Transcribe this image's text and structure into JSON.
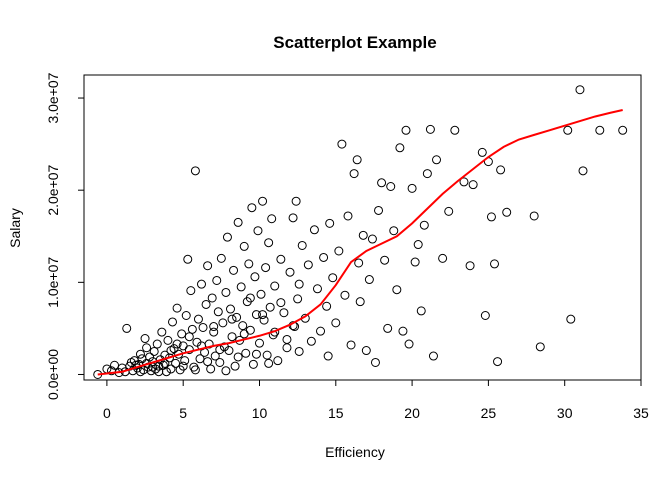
{
  "chart_data": {
    "type": "scatter",
    "title": "Scatterplot Example",
    "xlabel": "Efficiency",
    "ylabel": "Salary",
    "xlim": [
      -1.5,
      35
    ],
    "ylim": [
      -600000,
      32500000
    ],
    "x_ticks": [
      0,
      5,
      10,
      15,
      20,
      25,
      30,
      35
    ],
    "x_tick_labels": [
      "0",
      "5",
      "10",
      "15",
      "20",
      "25",
      "30",
      "35"
    ],
    "y_ticks": [
      0,
      10000000,
      20000000,
      30000000
    ],
    "y_tick_labels": [
      "0.0e+00",
      "1.0e+07",
      "2.0e+07",
      "3.0e+07"
    ],
    "grid": false,
    "legend": "none",
    "point_color": "#000000",
    "smoother_color": "#ff0000",
    "series": [
      {
        "kind": "points",
        "marker": "open-circle",
        "points": [
          [
            -0.6,
            0
          ],
          [
            0,
            600000
          ],
          [
            0.3,
            400000
          ],
          [
            0.5,
            1000000
          ],
          [
            0.8,
            200000
          ],
          [
            1,
            700000
          ],
          [
            1.2,
            300000
          ],
          [
            1.3,
            5000000
          ],
          [
            1.5,
            900000
          ],
          [
            1.6,
            1300000
          ],
          [
            1.7,
            400000
          ],
          [
            1.8,
            1500000
          ],
          [
            2,
            700000
          ],
          [
            2.1,
            1100000
          ],
          [
            2.2,
            300000
          ],
          [
            2.3,
            1700000
          ],
          [
            2.4,
            500000
          ],
          [
            2.5,
            3900000
          ],
          [
            2.6,
            1200000
          ],
          [
            2.7,
            800000
          ],
          [
            2.8,
            1900000
          ],
          [
            2.9,
            400000
          ],
          [
            3,
            1400000
          ],
          [
            3.1,
            2500000
          ],
          [
            3.2,
            600000
          ],
          [
            3.3,
            3300000
          ],
          [
            3.4,
            900000
          ],
          [
            3.5,
            1600000
          ],
          [
            3.6,
            4600000
          ],
          [
            3.7,
            1000000
          ],
          [
            3.8,
            2100000
          ],
          [
            3.9,
            300000
          ],
          [
            4,
            3700000
          ],
          [
            4.1,
            1800000
          ],
          [
            4.2,
            600000
          ],
          [
            4.3,
            5700000
          ],
          [
            4.4,
            2800000
          ],
          [
            4.5,
            1200000
          ],
          [
            4.6,
            7200000
          ],
          [
            4.7,
            2200000
          ],
          [
            4.8,
            500000
          ],
          [
            4.9,
            4400000
          ],
          [
            5,
            3100000
          ],
          [
            5.1,
            1500000
          ],
          [
            5.2,
            6400000
          ],
          [
            5.3,
            12500000
          ],
          [
            5.4,
            2700000
          ],
          [
            5.5,
            9100000
          ],
          [
            5.6,
            4900000
          ],
          [
            5.7,
            800000
          ],
          [
            5.8,
            22100000
          ],
          [
            5.9,
            3500000
          ],
          [
            6,
            6000000
          ],
          [
            6.1,
            1700000
          ],
          [
            6.2,
            9800000
          ],
          [
            6.3,
            5100000
          ],
          [
            6.4,
            2400000
          ],
          [
            6.5,
            7600000
          ],
          [
            6.6,
            11800000
          ],
          [
            6.7,
            3300000
          ],
          [
            6.8,
            600000
          ],
          [
            6.9,
            8300000
          ],
          [
            7,
            4600000
          ],
          [
            7.1,
            2000000
          ],
          [
            7.2,
            10200000
          ],
          [
            7.3,
            6800000
          ],
          [
            7.4,
            1300000
          ],
          [
            7.5,
            12600000
          ],
          [
            7.6,
            5600000
          ],
          [
            7.7,
            3000000
          ],
          [
            7.8,
            8900000
          ],
          [
            7.9,
            14900000
          ],
          [
            8,
            2600000
          ],
          [
            8.1,
            7100000
          ],
          [
            8.2,
            4100000
          ],
          [
            8.3,
            11300000
          ],
          [
            8.4,
            900000
          ],
          [
            8.5,
            6200000
          ],
          [
            8.6,
            16500000
          ],
          [
            8.7,
            3700000
          ],
          [
            8.8,
            9500000
          ],
          [
            8.9,
            5300000
          ],
          [
            9,
            13900000
          ],
          [
            9.1,
            2300000
          ],
          [
            9.2,
            7900000
          ],
          [
            9.3,
            12000000
          ],
          [
            9.4,
            4800000
          ],
          [
            9.5,
            18100000
          ],
          [
            9.6,
            1100000
          ],
          [
            9.7,
            10600000
          ],
          [
            9.8,
            6500000
          ],
          [
            9.9,
            15600000
          ],
          [
            10,
            3400000
          ],
          [
            10.1,
            8700000
          ],
          [
            10.2,
            18800000
          ],
          [
            10.3,
            5900000
          ],
          [
            10.4,
            11600000
          ],
          [
            10.5,
            2100000
          ],
          [
            10.6,
            14300000
          ],
          [
            10.7,
            7300000
          ],
          [
            10.8,
            16900000
          ],
          [
            10.9,
            4300000
          ],
          [
            11,
            9600000
          ],
          [
            11.2,
            1500000
          ],
          [
            11.4,
            12500000
          ],
          [
            11.6,
            6700000
          ],
          [
            11.8,
            3800000
          ],
          [
            12,
            11100000
          ],
          [
            12.2,
            17000000
          ],
          [
            12.3,
            5200000
          ],
          [
            12.4,
            18800000
          ],
          [
            12.5,
            8200000
          ],
          [
            12.6,
            2500000
          ],
          [
            12.8,
            14000000
          ],
          [
            13,
            6100000
          ],
          [
            13.2,
            11900000
          ],
          [
            13.4,
            3600000
          ],
          [
            13.6,
            15700000
          ],
          [
            13.8,
            9300000
          ],
          [
            14,
            4700000
          ],
          [
            14.2,
            12700000
          ],
          [
            14.4,
            7400000
          ],
          [
            14.5,
            2000000
          ],
          [
            14.6,
            16400000
          ],
          [
            14.8,
            10500000
          ],
          [
            15,
            5600000
          ],
          [
            15.2,
            13400000
          ],
          [
            15.4,
            25000000
          ],
          [
            15.6,
            8600000
          ],
          [
            15.8,
            17200000
          ],
          [
            16,
            3200000
          ],
          [
            16.2,
            21800000
          ],
          [
            16.4,
            23300000
          ],
          [
            16.5,
            12100000
          ],
          [
            16.6,
            7900000
          ],
          [
            16.8,
            15100000
          ],
          [
            17,
            2600000
          ],
          [
            17.2,
            10300000
          ],
          [
            17.4,
            14700000
          ],
          [
            17.6,
            1300000
          ],
          [
            17.8,
            17800000
          ],
          [
            18,
            20800000
          ],
          [
            18.2,
            12400000
          ],
          [
            18.4,
            5000000
          ],
          [
            18.6,
            20400000
          ],
          [
            18.8,
            15600000
          ],
          [
            19,
            9200000
          ],
          [
            19.2,
            24600000
          ],
          [
            19.4,
            4700000
          ],
          [
            19.6,
            26500000
          ],
          [
            19.8,
            3300000
          ],
          [
            20,
            20200000
          ],
          [
            20.2,
            12200000
          ],
          [
            20.4,
            14100000
          ],
          [
            20.6,
            6900000
          ],
          [
            20.8,
            16200000
          ],
          [
            21,
            21800000
          ],
          [
            21.2,
            26600000
          ],
          [
            21.4,
            2000000
          ],
          [
            21.6,
            23300000
          ],
          [
            22,
            12600000
          ],
          [
            22.4,
            17700000
          ],
          [
            22.8,
            26500000
          ],
          [
            23.4,
            20900000
          ],
          [
            23.8,
            11800000
          ],
          [
            24,
            20600000
          ],
          [
            24.6,
            24100000
          ],
          [
            24.8,
            6400000
          ],
          [
            25,
            23100000
          ],
          [
            25.2,
            17100000
          ],
          [
            25.4,
            12000000
          ],
          [
            25.6,
            1400000
          ],
          [
            25.8,
            22200000
          ],
          [
            26.2,
            17600000
          ],
          [
            28,
            17200000
          ],
          [
            28.4,
            3000000
          ],
          [
            30.2,
            26500000
          ],
          [
            30.4,
            6000000
          ],
          [
            31,
            30900000
          ],
          [
            31.2,
            22100000
          ],
          [
            32.3,
            26500000
          ],
          [
            33.8,
            26500000
          ],
          [
            1.9,
            1000000
          ],
          [
            2.2,
            2200000
          ],
          [
            2.6,
            2900000
          ],
          [
            3.0,
            800000
          ],
          [
            3.4,
            300000
          ],
          [
            3.8,
            1200000
          ],
          [
            4.2,
            2600000
          ],
          [
            4.6,
            3300000
          ],
          [
            5.0,
            900000
          ],
          [
            5.4,
            4100000
          ],
          [
            5.8,
            500000
          ],
          [
            6.2,
            3100000
          ],
          [
            6.6,
            1400000
          ],
          [
            7.0,
            5200000
          ],
          [
            7.4,
            2700000
          ],
          [
            7.8,
            400000
          ],
          [
            8.2,
            6000000
          ],
          [
            8.6,
            1900000
          ],
          [
            9.0,
            4400000
          ],
          [
            9.4,
            8300000
          ],
          [
            9.8,
            2200000
          ],
          [
            10.2,
            6500000
          ],
          [
            10.6,
            1200000
          ],
          [
            11.0,
            4600000
          ],
          [
            11.4,
            7800000
          ],
          [
            11.8,
            2900000
          ],
          [
            12.2,
            5300000
          ],
          [
            12.6,
            9800000
          ]
        ]
      },
      {
        "kind": "smoother",
        "points": [
          [
            -0.6,
            0
          ],
          [
            1,
            300000
          ],
          [
            2,
            800000
          ],
          [
            3,
            1300000
          ],
          [
            4,
            1800000
          ],
          [
            5,
            2300000
          ],
          [
            6,
            2700000
          ],
          [
            7,
            3100000
          ],
          [
            8,
            3400000
          ],
          [
            9,
            3800000
          ],
          [
            10,
            4200000
          ],
          [
            11,
            4700000
          ],
          [
            12,
            5400000
          ],
          [
            13,
            6300000
          ],
          [
            14,
            7600000
          ],
          [
            15,
            9700000
          ],
          [
            16,
            12200000
          ],
          [
            17,
            13400000
          ],
          [
            18,
            14200000
          ],
          [
            19,
            15000000
          ],
          [
            20,
            16400000
          ],
          [
            21,
            18000000
          ],
          [
            22,
            19600000
          ],
          [
            23,
            21000000
          ],
          [
            24,
            22300000
          ],
          [
            25,
            23600000
          ],
          [
            26,
            24700000
          ],
          [
            27,
            25500000
          ],
          [
            28,
            26000000
          ],
          [
            29,
            26500000
          ],
          [
            30,
            27000000
          ],
          [
            31,
            27500000
          ],
          [
            32,
            28000000
          ],
          [
            33,
            28400000
          ],
          [
            33.8,
            28700000
          ]
        ]
      }
    ]
  }
}
